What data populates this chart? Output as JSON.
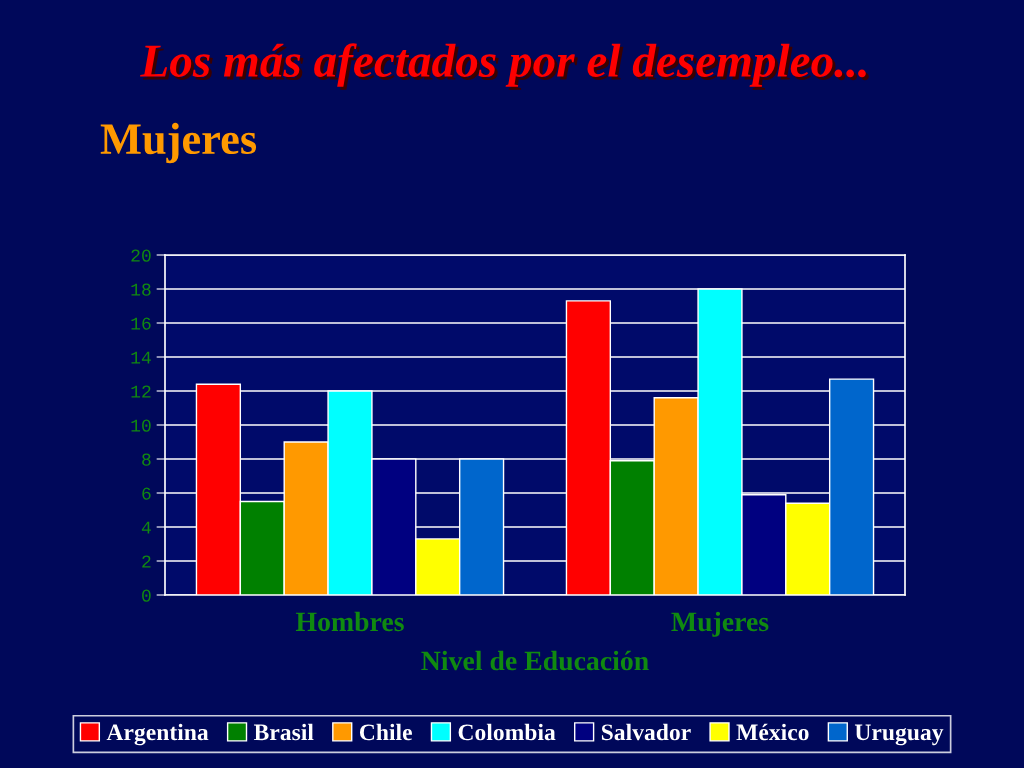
{
  "chart_data": {
    "type": "bar",
    "title": "Los más afectados por el desempleo...",
    "subtitle": "Mujeres",
    "xlabel": "Nivel de Educación",
    "categories": [
      "Hombres",
      "Mujeres"
    ],
    "series": [
      {
        "name": "Argentina",
        "color": "#ff0000",
        "values": [
          12.4,
          17.3
        ]
      },
      {
        "name": "Brasil",
        "color": "#008000",
        "values": [
          5.5,
          7.9
        ]
      },
      {
        "name": "Chile",
        "color": "#ff9900",
        "values": [
          9.0,
          11.6
        ]
      },
      {
        "name": "Colombia",
        "color": "#00ffff",
        "values": [
          12.0,
          18.0
        ]
      },
      {
        "name": "Salvador",
        "color": "#000080",
        "values": [
          8.0,
          5.9
        ]
      },
      {
        "name": "México",
        "color": "#ffff00",
        "values": [
          3.3,
          5.4
        ]
      },
      {
        "name": "Uruguay",
        "color": "#0066cc",
        "values": [
          8.0,
          12.7
        ]
      }
    ],
    "ylim": [
      0,
      20
    ],
    "yticks": [
      0,
      2,
      4,
      6,
      8,
      10,
      12,
      14,
      16,
      18,
      20
    ],
    "grid": "y",
    "legend": "bottom"
  }
}
